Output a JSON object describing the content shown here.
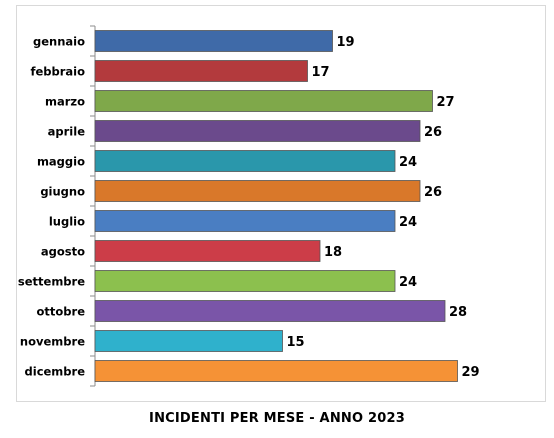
{
  "chart_data": {
    "type": "bar",
    "orientation": "horizontal",
    "title": "INCIDENTI PER MESE - ANNO 2023",
    "xlabel": "",
    "ylabel": "",
    "categories": [
      "gennaio",
      "febbraio",
      "marzo",
      "aprile",
      "maggio",
      "giugno",
      "luglio",
      "agosto",
      "settembre",
      "ottobre",
      "novembre",
      "dicembre"
    ],
    "values": [
      19,
      17,
      27,
      26,
      24,
      26,
      24,
      18,
      24,
      28,
      15,
      29
    ],
    "bar_colors": [
      "#3f6aa8",
      "#b33a3d",
      "#7fa84a",
      "#6b4a8c",
      "#2a97ab",
      "#d9782a",
      "#4a7ec2",
      "#cc3d48",
      "#8cc04e",
      "#7a55a8",
      "#2fb1cc",
      "#f59236"
    ],
    "xlim": [
      0,
      29
    ],
    "grid": false,
    "legend": "none",
    "data_labels": true
  }
}
